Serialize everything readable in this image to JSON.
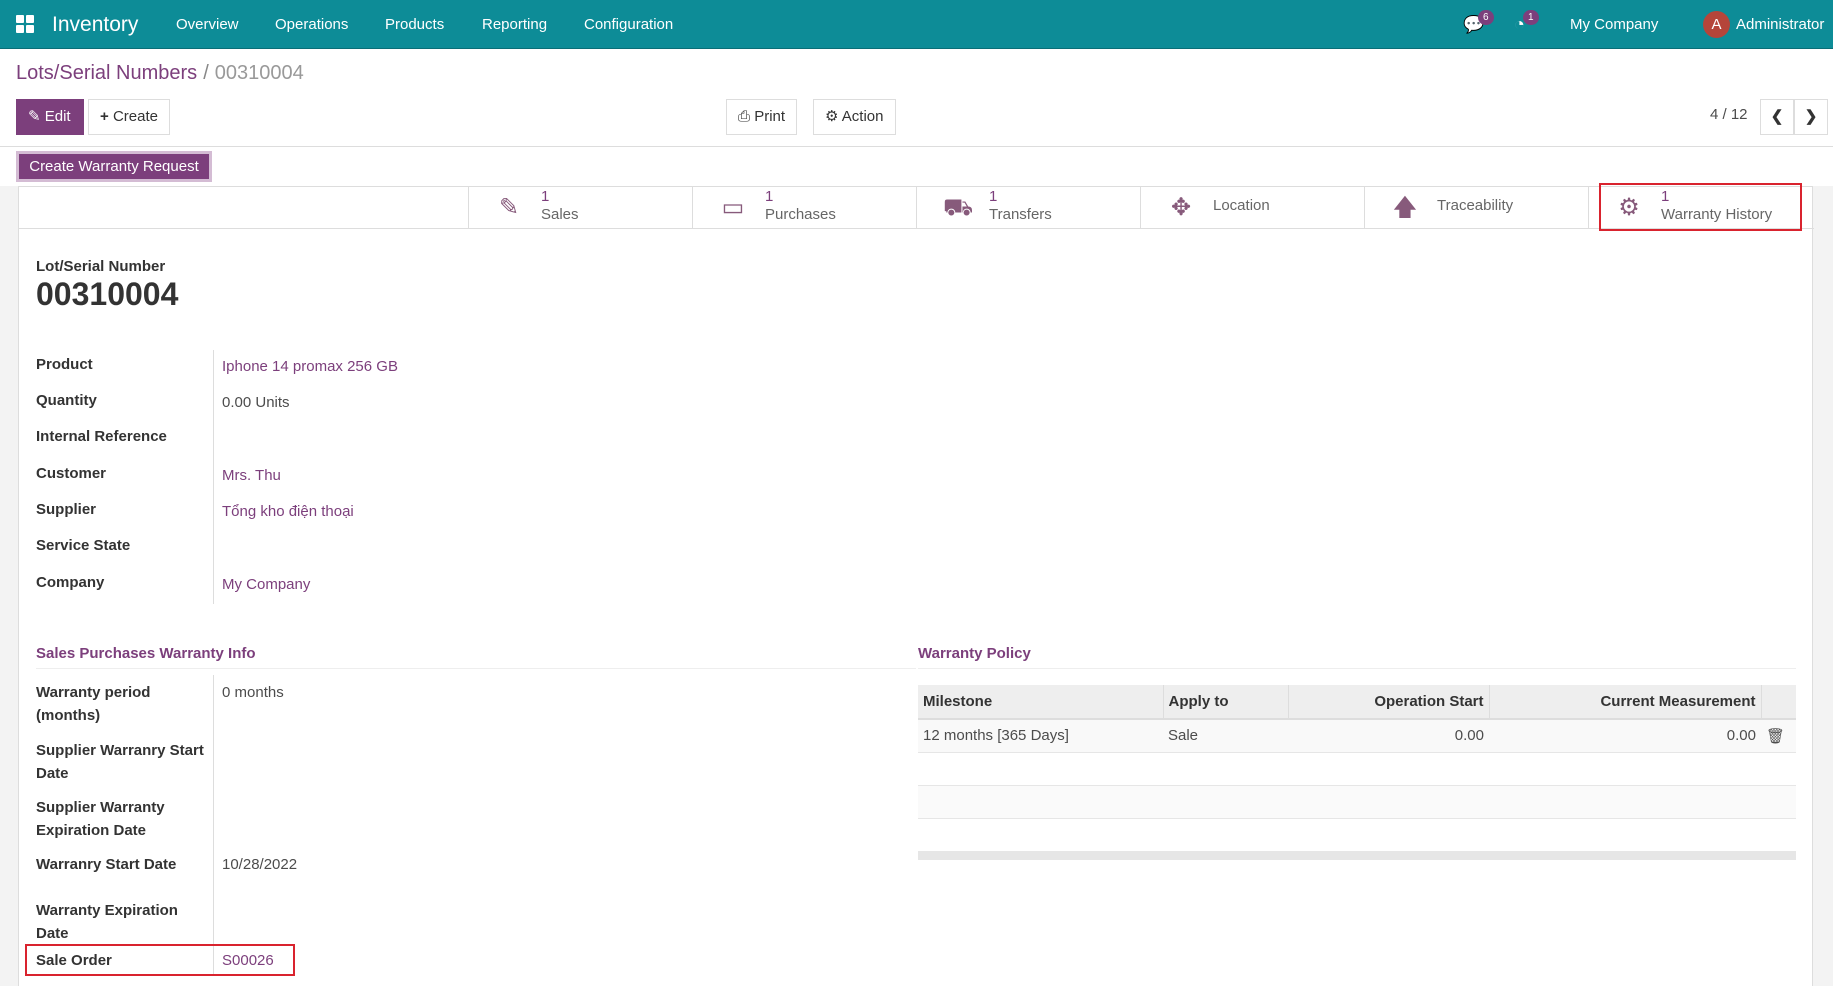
{
  "nav": {
    "app": "Inventory",
    "menu": [
      "Overview",
      "Operations",
      "Products",
      "Reporting",
      "Configuration"
    ],
    "messages_count": "6",
    "activities_count": "1",
    "company": "My Company",
    "avatar_letter": "A",
    "user": "Administrator"
  },
  "breadcrumb": {
    "parent": "Lots/Serial Numbers",
    "separator": "/",
    "current": "00310004"
  },
  "toolbar": {
    "edit": "Edit",
    "create": "Create",
    "print": "Print",
    "action": "Action",
    "pager": "4 / 12"
  },
  "header": {
    "create_warranty_request": "Create Warranty Request"
  },
  "stats": [
    {
      "icon": "pencil-square-icon",
      "count": "1",
      "label": "Sales"
    },
    {
      "icon": "credit-card-icon",
      "count": "1",
      "label": "Purchases"
    },
    {
      "icon": "truck-icon",
      "count": "1",
      "label": "Transfers"
    },
    {
      "icon": "arrows-icon",
      "count": "",
      "label": "Location"
    },
    {
      "icon": "arrow-up-icon",
      "count": "",
      "label": "Traceability"
    },
    {
      "icon": "gears-icon",
      "count": "1",
      "label": "Warranty History"
    }
  ],
  "form": {
    "title_label": "Lot/Serial Number",
    "title": "00310004",
    "fields": [
      {
        "label": "Product",
        "value": "Iphone 14 promax 256 GB"
      },
      {
        "label": "Quantity",
        "value": "0.00  Units"
      },
      {
        "label": "Internal Reference",
        "value": ""
      },
      {
        "label": "Customer",
        "value": "Mrs. Thu"
      },
      {
        "label": "Supplier",
        "value": "Tổng kho điện thoại"
      },
      {
        "label": "Service State",
        "value": ""
      },
      {
        "label": "Company",
        "value": "My Company"
      }
    ]
  },
  "warranty_info": {
    "title": "Sales Purchases Warranty Info",
    "fields": [
      {
        "label": "Warranty period (months)",
        "value": "0 months"
      },
      {
        "label": "Supplier Warranry Start Date",
        "value": ""
      },
      {
        "label": "Supplier Warranty Expiration Date",
        "value": ""
      },
      {
        "label": "Warranry Start Date",
        "value": "10/28/2022"
      },
      {
        "label": "Warranty Expiration Date",
        "value": ""
      },
      {
        "label": "Sale Order",
        "value": "S00026"
      }
    ]
  },
  "policy": {
    "title": "Warranty Policy",
    "columns": [
      "Milestone",
      "Apply to",
      "Operation Start",
      "Current Measurement"
    ],
    "rows": [
      [
        "12 months [365 Days]",
        "Sale",
        "0.00",
        "0.00"
      ]
    ]
  },
  "colors": {
    "navbar": "#0d8c97",
    "primary": "#7c3f7c",
    "highlight": "#d9232e"
  }
}
